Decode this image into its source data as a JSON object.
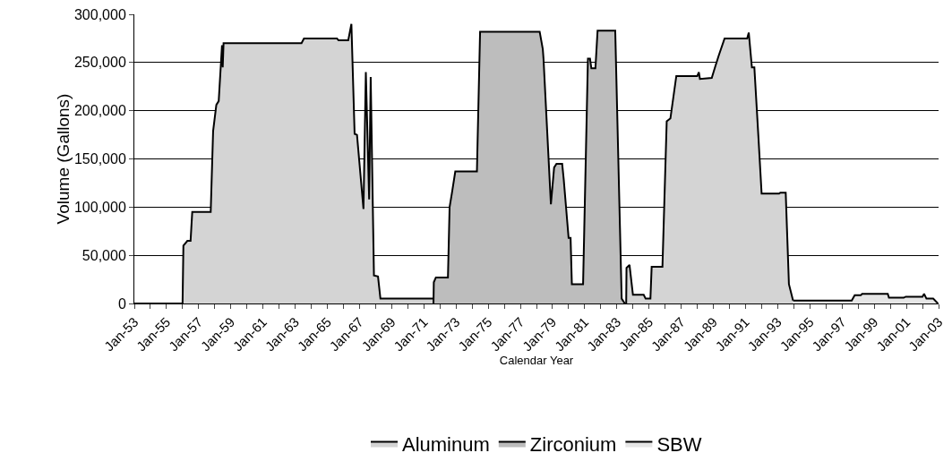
{
  "chart_data": {
    "type": "area",
    "xlabel": "Calendar Year",
    "ylabel": "Volume (Gallons)",
    "xlim": [
      "1953-01-01",
      "2003-01-01"
    ],
    "xticks": [
      {
        "value": "1953-01-01",
        "label": "Jan-53"
      },
      {
        "value": "1954-01-01",
        "label": null
      },
      {
        "value": "1955-01-01",
        "label": "Jan-55"
      },
      {
        "value": "1956-01-01",
        "label": null
      },
      {
        "value": "1957-01-01",
        "label": "Jan-57"
      },
      {
        "value": "1958-01-01",
        "label": null
      },
      {
        "value": "1959-01-01",
        "label": "Jan-59"
      },
      {
        "value": "1960-01-01",
        "label": null
      },
      {
        "value": "1961-01-01",
        "label": "Jan-61"
      },
      {
        "value": "1962-01-01",
        "label": null
      },
      {
        "value": "1963-01-01",
        "label": "Jan-63"
      },
      {
        "value": "1964-01-01",
        "label": null
      },
      {
        "value": "1965-01-01",
        "label": "Jan-65"
      },
      {
        "value": "1966-01-01",
        "label": null
      },
      {
        "value": "1967-01-01",
        "label": "Jan-67"
      },
      {
        "value": "1968-01-01",
        "label": null
      },
      {
        "value": "1969-01-01",
        "label": "Jan-69"
      },
      {
        "value": "1970-01-01",
        "label": null
      },
      {
        "value": "1971-01-01",
        "label": "Jan-71"
      },
      {
        "value": "1972-01-01",
        "label": null
      },
      {
        "value": "1973-01-01",
        "label": "Jan-73"
      },
      {
        "value": "1974-01-01",
        "label": null
      },
      {
        "value": "1975-01-01",
        "label": "Jan-75"
      },
      {
        "value": "1976-01-01",
        "label": null
      },
      {
        "value": "1977-01-01",
        "label": "Jan-77"
      },
      {
        "value": "1978-01-01",
        "label": null
      },
      {
        "value": "1979-01-01",
        "label": "Jan-79"
      },
      {
        "value": "1980-01-01",
        "label": null
      },
      {
        "value": "1981-01-01",
        "label": "Jan-81"
      },
      {
        "value": "1982-01-01",
        "label": null
      },
      {
        "value": "1983-01-01",
        "label": "Jan-83"
      },
      {
        "value": "1984-01-01",
        "label": null
      },
      {
        "value": "1985-01-01",
        "label": "Jan-85"
      },
      {
        "value": "1986-01-01",
        "label": null
      },
      {
        "value": "1987-01-01",
        "label": "Jan-87"
      },
      {
        "value": "1988-01-01",
        "label": null
      },
      {
        "value": "1989-01-01",
        "label": "Jan-89"
      },
      {
        "value": "1990-01-01",
        "label": null
      },
      {
        "value": "1991-01-01",
        "label": "Jan-91"
      },
      {
        "value": "1992-01-01",
        "label": null
      },
      {
        "value": "1993-01-01",
        "label": "Jan-93"
      },
      {
        "value": "1994-01-01",
        "label": null
      },
      {
        "value": "1995-01-01",
        "label": "Jan-95"
      },
      {
        "value": "1996-01-01",
        "label": null
      },
      {
        "value": "1997-01-01",
        "label": "Jan-97"
      },
      {
        "value": "1998-01-01",
        "label": null
      },
      {
        "value": "1999-01-01",
        "label": "Jan-99"
      },
      {
        "value": "2000-01-01",
        "label": null
      },
      {
        "value": "2001-01-01",
        "label": "Jan-01"
      },
      {
        "value": "2002-01-01",
        "label": null
      },
      {
        "value": "2003-01-01",
        "label": "Jan-03"
      }
    ],
    "ylim": [
      0,
      300000
    ],
    "yticks": [
      {
        "value": 0,
        "label": "0"
      },
      {
        "value": 50000,
        "label": "50,000"
      },
      {
        "value": 100000,
        "label": "100,000"
      },
      {
        "value": 150000,
        "label": "150,000"
      },
      {
        "value": 200000,
        "label": "200,000"
      },
      {
        "value": 250000,
        "label": "250,000"
      },
      {
        "value": 300000,
        "label": "300,000"
      }
    ],
    "grid": "y",
    "legend": "bottom",
    "series": [
      {
        "name": "Aluminum",
        "color": "#d4d4d4",
        "x": [
          "1953-01-01",
          "1956-01-01",
          "1956-01-20",
          "1956-04-20",
          "1956-07-01",
          "1956-08-08",
          "1957-10-01",
          "1957-11-25",
          "1958-02-06",
          "1958-04-01",
          "1958-06-15",
          "1958-07-01",
          "1958-07-20",
          "1963-05-25",
          "1963-07-20",
          "1965-08-08",
          "1965-09-12",
          "1966-04-20",
          "1966-07-01",
          "1966-09-12",
          "1966-11-05",
          "1967-04-01",
          "1967-05-25",
          "1967-08-08",
          "1967-09-12",
          "1967-11-25",
          "1968-02-25",
          "1968-04-20",
          "1971-08-08",
          "1977-01-01",
          "1983-08-01",
          "1983-08-08",
          "1983-10-15",
          "1984-01-01",
          "1984-09-01",
          "1984-10-15",
          "1985-02-01",
          "1985-03-01",
          "1985-11-01",
          "1986-02-06",
          "1986-05-01",
          "1986-09-12",
          "1988-01-01",
          "1988-02-06",
          "1988-03-01",
          "1988-11-25",
          "1989-02-06",
          "1989-05-01",
          "1989-09-12",
          "1991-02-06",
          "1991-03-15",
          "1991-05-25",
          "1991-07-20",
          "1991-10-20",
          "1992-01-01",
          "1993-02-01",
          "1993-03-01",
          "1993-07-01",
          "1993-09-12",
          "1993-12-15"
        ],
        "values": [
          0,
          0,
          60000,
          65000,
          65000,
          95000,
          95000,
          179000,
          206000,
          210000,
          268000,
          245000,
          270000,
          270000,
          275000,
          275000,
          273000,
          273000,
          290000,
          176000,
          175000,
          98000,
          240000,
          108000,
          235000,
          29000,
          28000,
          5000,
          5000,
          null,
          0,
          37000,
          40000,
          9000,
          9000,
          5000,
          5000,
          38000,
          38000,
          189000,
          192000,
          236000,
          236000,
          240000,
          233000,
          234000,
          245000,
          257000,
          275000,
          275000,
          281000,
          245000,
          245000,
          173000,
          114000,
          114000,
          115000,
          115000,
          20000,
          3000
        ]
      },
      {
        "name": "Zirconium",
        "color": "#bdbdbd",
        "x": [
          "1971-08-08",
          "1971-08-15",
          "1971-10-01",
          "1972-07-01",
          "1972-08-08",
          "1972-10-01",
          "1972-12-15",
          "1974-04-20",
          "1974-07-01",
          "1978-03-15",
          "1978-05-25",
          "1978-06-10",
          "1978-11-25",
          "1979-02-06",
          "1979-04-01",
          "1979-08-08",
          "1979-09-12",
          "1980-01-01",
          "1980-02-15",
          "1980-03-15",
          "1980-11-25",
          "1981-03-15",
          "1981-05-01",
          "1981-06-01",
          "1981-09-01",
          "1981-10-20",
          "1982-11-25",
          "1983-04-20",
          "1983-07-01"
        ],
        "values": [
          0,
          22000,
          27000,
          27000,
          100000,
          115000,
          137000,
          137000,
          282000,
          282000,
          264000,
          254000,
          103000,
          141000,
          145000,
          145000,
          129000,
          68000,
          68000,
          20000,
          20000,
          254000,
          254000,
          244000,
          244000,
          283000,
          283000,
          5000,
          0
        ]
      },
      {
        "name": "SBW",
        "color": "#e6e6e6",
        "x": [
          "1993-12-15",
          "1997-08-08",
          "1997-10-15",
          "1998-03-01",
          "1998-04-01",
          "1999-11-05",
          "1999-12-01",
          "2000-11-01",
          "2000-12-15",
          "2002-01-01",
          "2002-02-06",
          "2002-04-01",
          "2002-09-01",
          "2002-12-20"
        ],
        "values": [
          3000,
          3000,
          8500,
          8500,
          10000,
          10000,
          6000,
          6000,
          7000,
          7000,
          10000,
          5000,
          5000,
          0
        ]
      }
    ]
  }
}
